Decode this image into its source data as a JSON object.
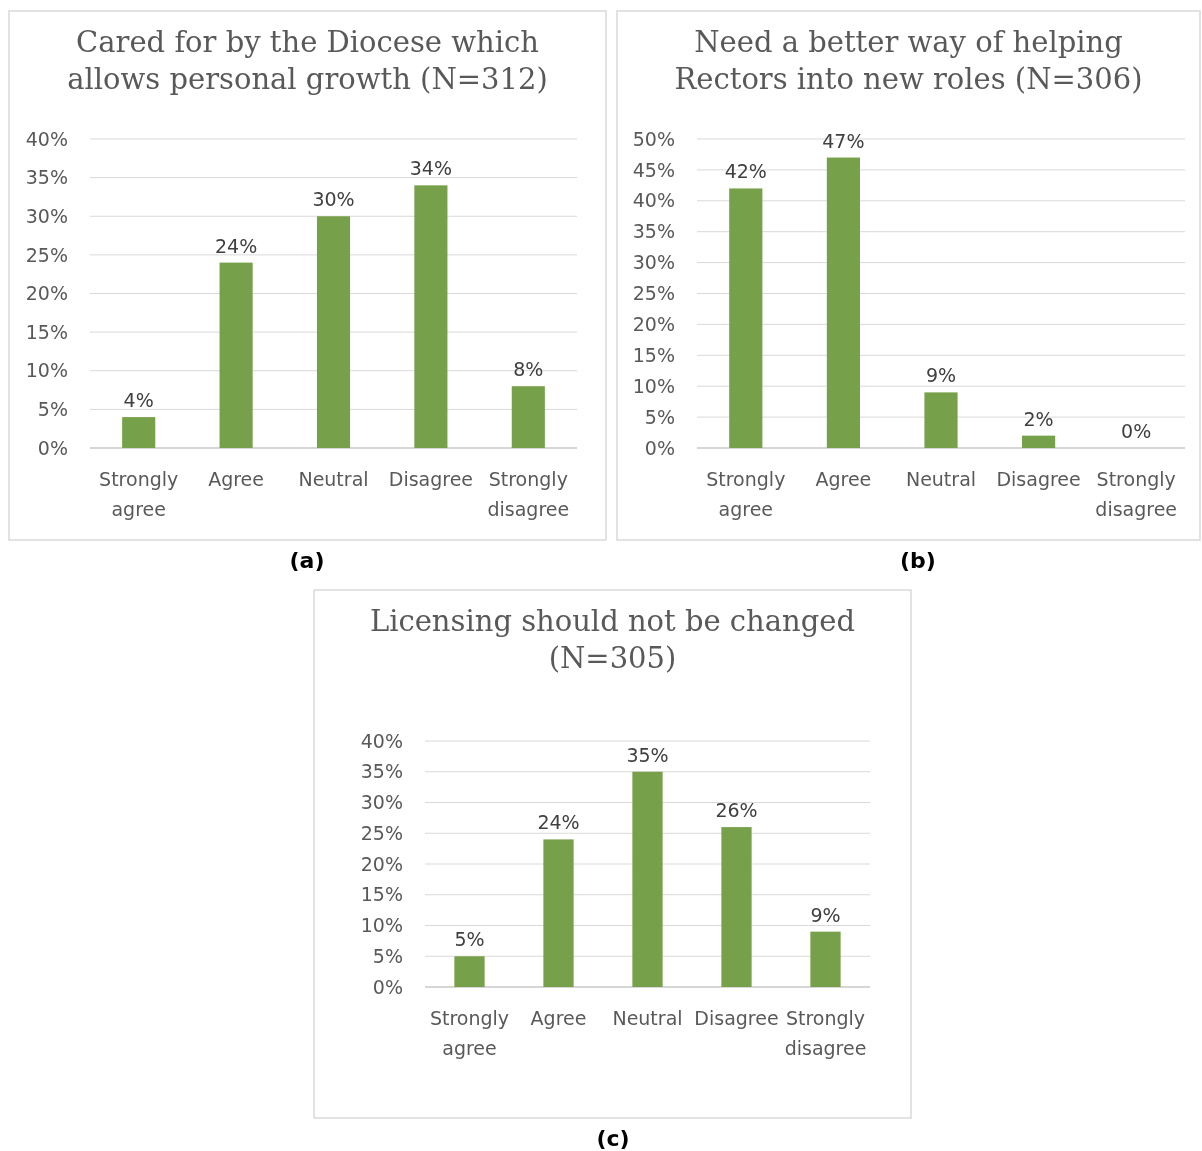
{
  "chart_data": [
    {
      "type": "bar",
      "title": "Cared for by the Diocese which allows personal growth (N=312)",
      "categories": [
        "Strongly agree",
        "Agree",
        "Neutral",
        "Disagree",
        "Strongly disagree"
      ],
      "values": [
        4,
        24,
        30,
        34,
        8
      ],
      "value_labels": [
        "4%",
        "24%",
        "30%",
        "34%",
        "8%"
      ],
      "color": "#77a04a",
      "ylim": [
        0,
        40
      ],
      "yticks": [
        {
          "value": 0,
          "label": "0%"
        },
        {
          "value": 5,
          "label": "5%"
        },
        {
          "value": 10,
          "label": "10%"
        },
        {
          "value": 15,
          "label": "15%"
        },
        {
          "value": 20,
          "label": "20%"
        },
        {
          "value": 25,
          "label": "25%"
        },
        {
          "value": 30,
          "label": "30%"
        },
        {
          "value": 35,
          "label": "35%"
        },
        {
          "value": 40,
          "label": "40%"
        }
      ],
      "grid": "y",
      "annotations": [
        "(a)"
      ]
    },
    {
      "type": "bar",
      "title": "Need a better way of helping Rectors into new roles (N=306)",
      "categories": [
        "Strongly agree",
        "Agree",
        "Neutral",
        "Disagree",
        "Strongly disagree"
      ],
      "values": [
        42,
        47,
        9,
        2,
        0
      ],
      "value_labels": [
        "42%",
        "47%",
        "9%",
        "2%",
        "0%"
      ],
      "color": "#77a04a",
      "ylim": [
        0,
        50
      ],
      "yticks": [
        {
          "value": 0,
          "label": "0%"
        },
        {
          "value": 5,
          "label": "5%"
        },
        {
          "value": 10,
          "label": "10%"
        },
        {
          "value": 15,
          "label": "15%"
        },
        {
          "value": 20,
          "label": "20%"
        },
        {
          "value": 25,
          "label": "25%"
        },
        {
          "value": 30,
          "label": "30%"
        },
        {
          "value": 35,
          "label": "35%"
        },
        {
          "value": 40,
          "label": "40%"
        },
        {
          "value": 45,
          "label": "45%"
        },
        {
          "value": 50,
          "label": "50%"
        }
      ],
      "grid": "y",
      "annotations": [
        "(b)"
      ]
    },
    {
      "type": "bar",
      "title": "Licensing should not be changed (N=305)",
      "categories": [
        "Strongly agree",
        "Agree",
        "Neutral",
        "Disagree",
        "Strongly disagree"
      ],
      "values": [
        5,
        24,
        35,
        26,
        9
      ],
      "value_labels": [
        "5%",
        "24%",
        "35%",
        "26%",
        "9%"
      ],
      "color": "#77a04a",
      "ylim": [
        0,
        40
      ],
      "yticks": [
        {
          "value": 0,
          "label": "0%"
        },
        {
          "value": 5,
          "label": "5%"
        },
        {
          "value": 10,
          "label": "10%"
        },
        {
          "value": 15,
          "label": "15%"
        },
        {
          "value": 20,
          "label": "20%"
        },
        {
          "value": 25,
          "label": "25%"
        },
        {
          "value": 30,
          "label": "30%"
        },
        {
          "value": 35,
          "label": "35%"
        },
        {
          "value": 40,
          "label": "40%"
        }
      ],
      "grid": "y",
      "annotations": [
        "(c)"
      ]
    }
  ]
}
